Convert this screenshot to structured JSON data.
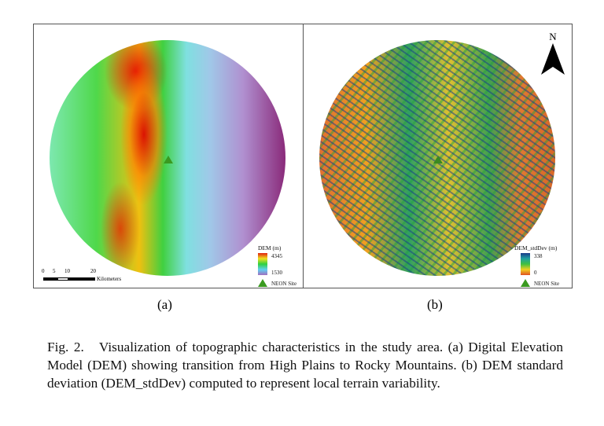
{
  "panel_a": {
    "legend_title": "DEM (m)",
    "max": "4345",
    "min": "1530",
    "site_label": "NEON Site",
    "scale": {
      "ticks": [
        "0",
        "5",
        "10",
        "20"
      ],
      "unit": "Kilometers"
    },
    "label": "(a)"
  },
  "panel_b": {
    "legend_title": "DEM_stdDev (m)",
    "max": "338",
    "min": "0",
    "site_label": "NEON Site",
    "north": "N",
    "label": "(b)"
  },
  "caption": {
    "prefix": "Fig. 2.",
    "text": "Visualization of topographic characteristics in the study area. (a) Digital Elevation Model (DEM) showing transition from High Plains to Rocky Mountains. (b) DEM standard deviation (DEM_stdDev) computed to represent local terrain variability."
  }
}
